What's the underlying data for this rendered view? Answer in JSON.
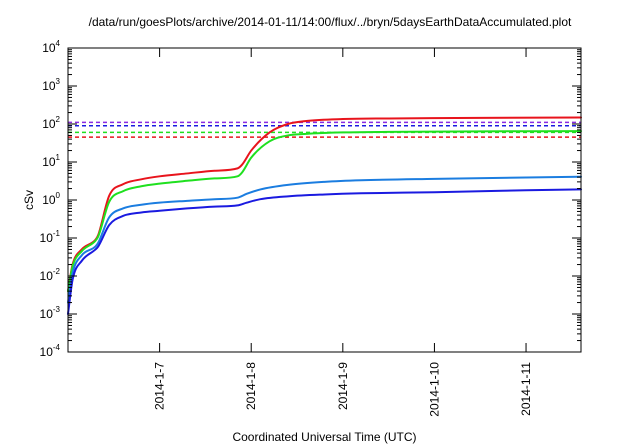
{
  "chart_data": {
    "type": "line",
    "title": "/data/run/goesPlots/archive/2014-01-11/14:00/flux/../bryn/5daysEarthDataAccumulated.plot",
    "xlabel": "Coordinated Universal Time (UTC)",
    "ylabel": "cSv",
    "y_scale": "log",
    "ylim": [
      0.0001,
      10000
    ],
    "xlim": [
      0.0,
      5.6
    ],
    "x_unit_note": "days after 2014-01-06 00:00 UTC",
    "y_ticks": [
      {
        "value": 0.0001,
        "base": "10",
        "exp": "-4"
      },
      {
        "value": 0.001,
        "base": "10",
        "exp": "-3"
      },
      {
        "value": 0.01,
        "base": "10",
        "exp": "-2"
      },
      {
        "value": 0.1,
        "base": "10",
        "exp": "-1"
      },
      {
        "value": 1,
        "base": "10",
        "exp": "0"
      },
      {
        "value": 10,
        "base": "10",
        "exp": "1"
      },
      {
        "value": 100,
        "base": "10",
        "exp": "2"
      },
      {
        "value": 1000,
        "base": "10",
        "exp": "3"
      },
      {
        "value": 10000,
        "base": "10",
        "exp": "4"
      }
    ],
    "x_ticks": [
      {
        "value": 1,
        "label": "2014-1-7"
      },
      {
        "value": 2,
        "label": "2014-1-8"
      },
      {
        "value": 3,
        "label": "2014-1-9"
      },
      {
        "value": 4,
        "label": "2014-1-10"
      },
      {
        "value": 5,
        "label": "2014-1-11"
      }
    ],
    "grid": false,
    "series": [
      {
        "color": "#e8141c",
        "x": [
          0.0,
          0.05,
          0.15,
          0.3,
          0.33,
          0.45,
          0.6,
          0.8,
          1.0,
          1.3,
          1.6,
          1.85,
          1.9,
          2.0,
          2.2,
          2.4,
          2.6,
          3.0,
          3.5,
          4.5,
          5.6
        ],
        "y": [
          0.004,
          0.02,
          0.05,
          0.09,
          0.12,
          1.3,
          2.6,
          3.5,
          4.2,
          5.0,
          5.9,
          6.8,
          8.5,
          20,
          60,
          100,
          120,
          135,
          140,
          145,
          148
        ]
      },
      {
        "color": "#1fe01f",
        "x": [
          0.0,
          0.05,
          0.15,
          0.3,
          0.33,
          0.45,
          0.6,
          0.8,
          1.0,
          1.3,
          1.6,
          1.85,
          1.9,
          2.0,
          2.2,
          2.4,
          2.6,
          3.0,
          3.5,
          4.5,
          5.6
        ],
        "y": [
          0.004,
          0.018,
          0.045,
          0.085,
          0.11,
          0.9,
          1.7,
          2.3,
          2.7,
          3.2,
          3.7,
          4.2,
          5.3,
          13,
          35,
          50,
          55,
          60,
          62,
          64,
          65
        ]
      },
      {
        "color": "#1b7de0",
        "x": [
          0.0,
          0.05,
          0.15,
          0.3,
          0.33,
          0.45,
          0.6,
          0.8,
          1.0,
          1.3,
          1.6,
          1.85,
          1.95,
          2.1,
          2.4,
          2.8,
          3.2,
          4.0,
          5.0,
          5.6
        ],
        "y": [
          0.002,
          0.012,
          0.035,
          0.06,
          0.075,
          0.35,
          0.6,
          0.75,
          0.85,
          0.95,
          1.05,
          1.15,
          1.45,
          1.9,
          2.5,
          3.0,
          3.3,
          3.6,
          3.9,
          4.1
        ]
      },
      {
        "color": "#1a1ae0",
        "x": [
          0.0,
          0.05,
          0.15,
          0.3,
          0.33,
          0.45,
          0.6,
          0.8,
          1.0,
          1.3,
          1.6,
          1.85,
          1.95,
          2.1,
          2.4,
          2.8,
          3.2,
          4.0,
          5.0,
          5.6
        ],
        "y": [
          0.001,
          0.008,
          0.025,
          0.05,
          0.06,
          0.22,
          0.38,
          0.47,
          0.52,
          0.6,
          0.67,
          0.72,
          0.85,
          1.05,
          1.25,
          1.4,
          1.5,
          1.6,
          1.8,
          1.9
        ]
      }
    ],
    "reference_lines": [
      {
        "color": "#8a2be2",
        "y": 110
      },
      {
        "color": "#1a1ae0",
        "y": 90
      },
      {
        "color": "#1fe01f",
        "y": 60
      },
      {
        "color": "#e8141c",
        "y": 45
      }
    ]
  }
}
